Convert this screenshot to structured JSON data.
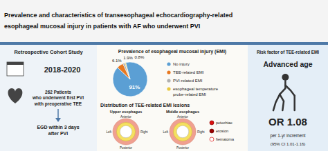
{
  "chart_data": {
    "type": "pie",
    "title": "Prevalence and characteristics of transesophageal echocardiography-related\nesophageal mucosal injury in patients with AF who underwent PVI",
    "categories": [
      "No injury",
      "TEE-related EMI",
      "PVI-related EMI",
      "esophageal temperature\nprobe-related EMI"
    ],
    "values": [
      91,
      6.1,
      1.9,
      0.8
    ],
    "value_labels": [
      "91%",
      "6.1%",
      "1.9%",
      "0.8%"
    ],
    "colors": [
      "#5b9fd4",
      "#e87820",
      "#b0b0b0",
      "#e8c840"
    ],
    "data_labels": true,
    "legend": "right",
    "annotations": [
      "Retrospective Cohort Study",
      "2018-2020",
      "262 Patients\nwho underwent first PVI\nwith preoperative TEE",
      "EGD within 3 days\nafter PVI",
      "Prevalence of esophageal mucosal injury (EMI)",
      "Distribution of TEE-related EMI lesions",
      "Upper esophagus",
      "Middle esophagus",
      "Anterior",
      "Posterior",
      "Left",
      "Right",
      "petechiae",
      "erosion",
      "hematoma",
      "Risk factor of TEE-related EMI",
      "Advanced age",
      "OR 1.08",
      "per 1-yr increment",
      "(95% CI 1.01-1.16)"
    ]
  }
}
